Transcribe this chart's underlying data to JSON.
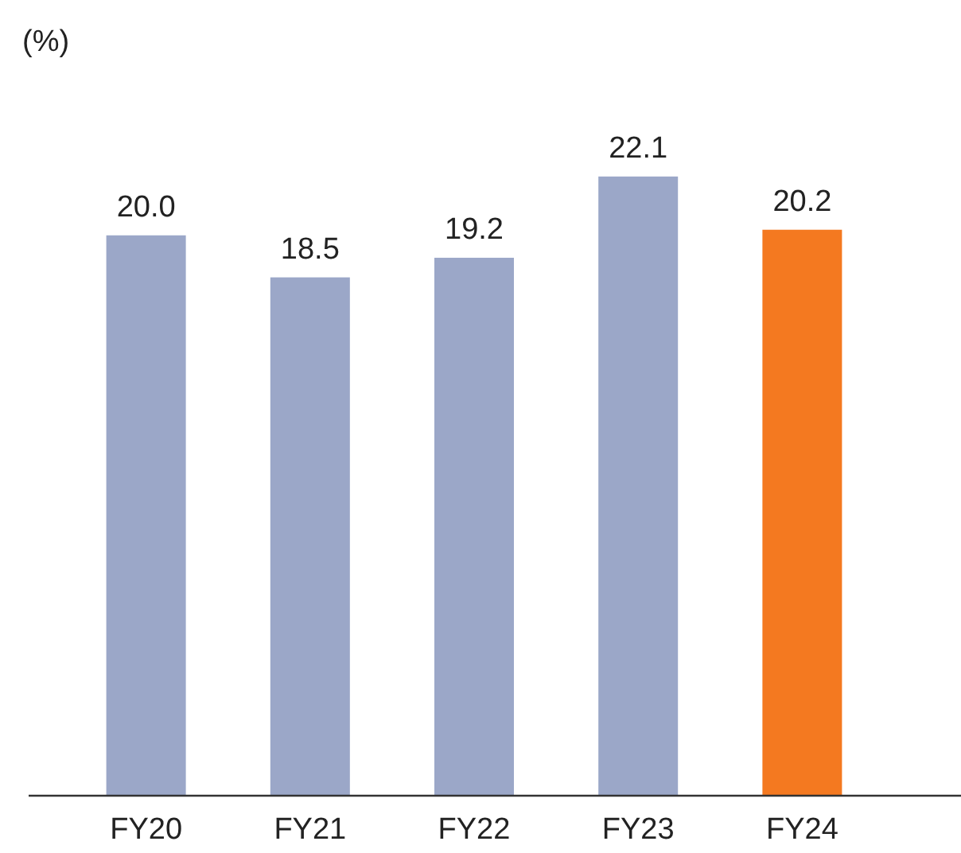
{
  "chart_data": {
    "type": "bar",
    "ylabel": "(%)",
    "categories": [
      "FY20",
      "FY21",
      "FY22",
      "FY23",
      "FY24"
    ],
    "values": [
      20.0,
      18.5,
      19.2,
      22.1,
      20.2
    ],
    "colors": [
      "#9ba7c8",
      "#9ba7c8",
      "#9ba7c8",
      "#9ba7c8",
      "#f47920"
    ],
    "value_labels": [
      "20.0",
      "18.5",
      "19.2",
      "22.1",
      "20.2"
    ]
  }
}
